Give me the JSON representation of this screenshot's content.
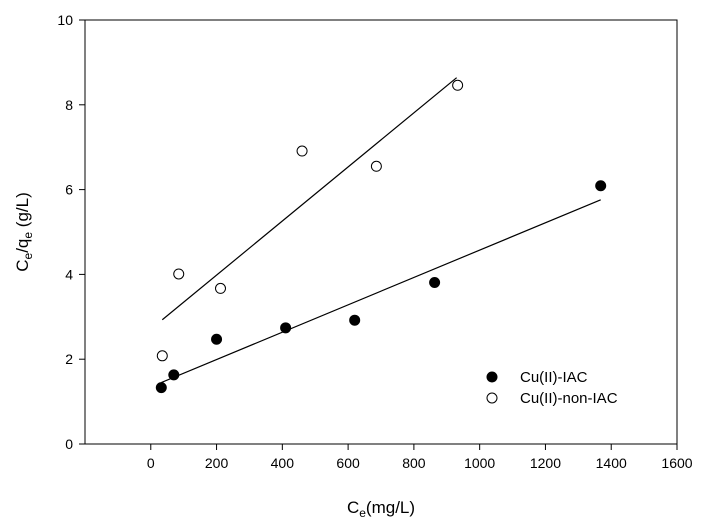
{
  "chart_data": {
    "type": "scatter",
    "title": "",
    "xlabel": {
      "main": "C",
      "sub": "e",
      "rest": "(mg/L)"
    },
    "ylabel": {
      "p1": "C",
      "s1": "e",
      "p2": "/q",
      "s2": "e",
      "p3": " (g/L)"
    },
    "xlim": [
      -200,
      1600
    ],
    "ylim": [
      0,
      10
    ],
    "xticks": [
      0,
      200,
      400,
      600,
      800,
      1000,
      1200,
      1400,
      1600
    ],
    "xtick_labels": [
      "0",
      "200",
      "400",
      "600",
      "800",
      "1000",
      "1200",
      "1400",
      "1600"
    ],
    "yticks": [
      0,
      2,
      4,
      6,
      8,
      10
    ],
    "ytick_labels": [
      "0",
      "2",
      "4",
      "6",
      "8",
      "10"
    ],
    "grid": false,
    "legend_position": "bottom-right",
    "series": [
      {
        "name": "Cu(II)-IAC",
        "marker": "filled-circle",
        "color": "#000000",
        "x": [
          32,
          70,
          200,
          410,
          620,
          863,
          1368
        ],
        "y": [
          1.33,
          1.63,
          2.47,
          2.74,
          2.92,
          3.81,
          6.09
        ],
        "fit": {
          "x": [
            32,
            1368
          ],
          "y": [
            1.45,
            5.76
          ]
        }
      },
      {
        "name": "Cu(II)-non-IAC",
        "marker": "open-circle",
        "color": "#000000",
        "x": [
          35,
          85,
          212,
          460,
          686,
          933
        ],
        "y": [
          2.08,
          4.01,
          3.67,
          6.91,
          6.55,
          8.46
        ],
        "fit": {
          "x": [
            35,
            930
          ],
          "y": [
            2.93,
            8.64
          ]
        }
      }
    ]
  }
}
